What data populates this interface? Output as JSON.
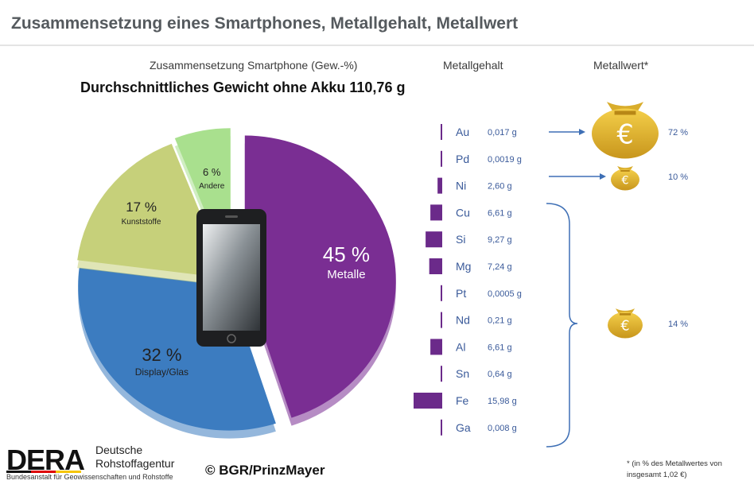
{
  "header": {
    "title": "Zusammensetzung eines Smartphones, Metallgehalt, Metallwert"
  },
  "colors": {
    "metalle": "#7a2e93",
    "display": "#3c7cc0",
    "kunststoffe": "#c6d07a",
    "andere": "#a9e08e",
    "bars": "#6b2a8a",
    "gold": "#d9ad2c",
    "arrow": "#3e6fb5"
  },
  "chart_data": [
    {
      "type": "pie",
      "title": "Zusammensetzung Smartphone (Gew.-%)",
      "subtitle": "Durchschnittliches Gewicht ohne Akku 110,76 g",
      "slices": [
        {
          "label": "Metalle",
          "value": 45,
          "value_label": "45 %",
          "color": "#7a2e93"
        },
        {
          "label": "Display/Glas",
          "value": 32,
          "value_label": "32 %",
          "color": "#3c7cc0"
        },
        {
          "label": "Kunststoffe",
          "value": 17,
          "value_label": "17 %",
          "color": "#c6d07a"
        },
        {
          "label": "Andere",
          "value": 6,
          "value_label": "6 %",
          "color": "#a9e08e"
        }
      ]
    },
    {
      "type": "bar",
      "orientation": "horizontal",
      "title": "Metallgehalt",
      "unit": "g",
      "categories": [
        "Au",
        "Pd",
        "Ni",
        "Cu",
        "Si",
        "Mg",
        "Pt",
        "Nd",
        "Al",
        "Sn",
        "Fe",
        "Ga"
      ],
      "values": [
        0.017,
        0.0019,
        2.6,
        6.61,
        9.27,
        7.24,
        0.0005,
        0.21,
        6.61,
        0.64,
        15.98,
        0.008
      ],
      "value_labels": [
        "0,017 g",
        "0,0019 g",
        "2,60 g",
        "6,61 g",
        "9,27 g",
        "7,24 g",
        "0,0005 g",
        "0,21 g",
        "6,61 g",
        "0,64 g",
        "15,98 g",
        "0,008 g"
      ],
      "xlim": [
        0,
        15.98
      ]
    },
    {
      "type": "table",
      "title": "Metallwert*",
      "rows": [
        {
          "group": "Au",
          "share": 72,
          "share_label": "72 %",
          "symbol": "€"
        },
        {
          "group": "Pd",
          "share": 10,
          "share_label": "10 %",
          "symbol": "€"
        },
        {
          "group": "Ni – Ga",
          "share": 14,
          "share_label": "14 %",
          "symbol": "€"
        }
      ]
    }
  ],
  "footer": {
    "brand": "DERA",
    "org_line1": "Deutsche",
    "org_line2": "Rohstoffagentur",
    "org_sub": "Bundesanstalt für Geowissenschaften und Rohstoffe",
    "copyright": "© BGR/PrinzMayer",
    "note_line1": "* (in % des Metallwertes von",
    "note_line2": "insgesamt 1,02 €)"
  }
}
